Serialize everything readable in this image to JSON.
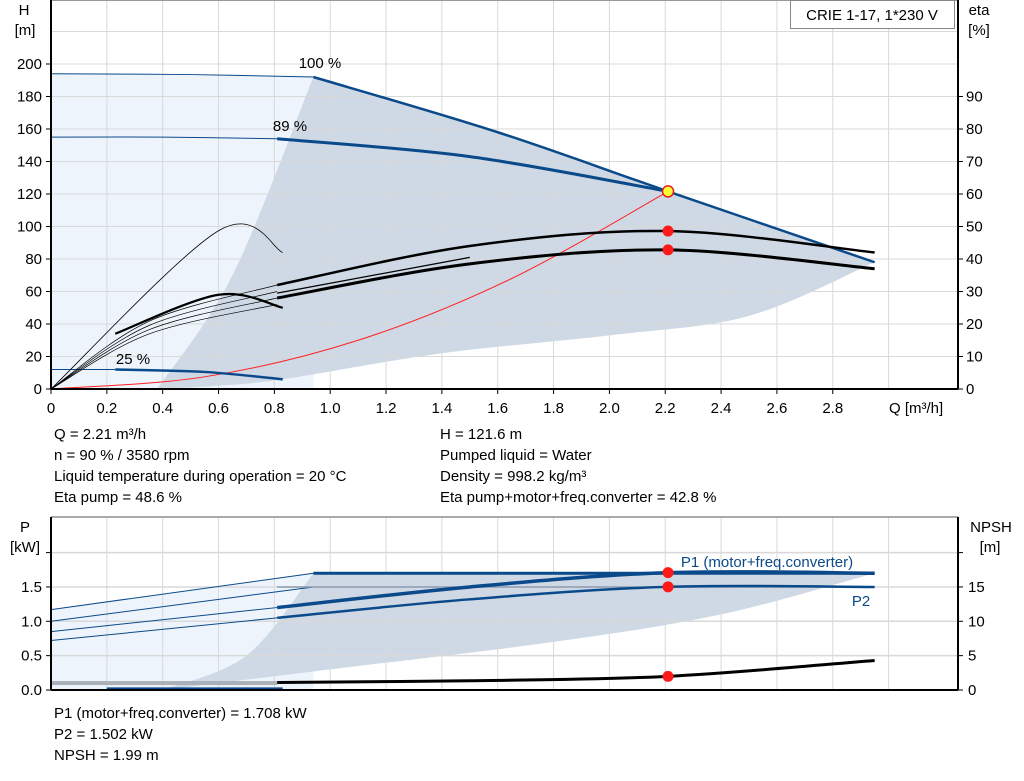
{
  "chart_data": [
    {
      "type": "line",
      "title": "CRIE 1-17, 1*230 V",
      "xlabel": "Q [m³/h]",
      "ylabel": [
        "H",
        "[m]"
      ],
      "ylabel_right": [
        "eta",
        "[%]"
      ],
      "xlim": [
        0,
        3.25
      ],
      "ylim": [
        0,
        239
      ],
      "ylim_right": [
        0,
        119.5
      ],
      "xticks": [
        "0",
        "0.2",
        "0.4",
        "0.6",
        "0.8",
        "1.0",
        "1.2",
        "1.4",
        "1.6",
        "1.8",
        "2.0",
        "2.2",
        "2.4",
        "2.6",
        "2.8"
      ],
      "yticks": [
        "0",
        "20",
        "40",
        "60",
        "80",
        "100",
        "120",
        "140",
        "160",
        "180",
        "200"
      ],
      "yticks_right": [
        "0",
        "10",
        "20",
        "30",
        "40",
        "50",
        "60",
        "70",
        "80",
        "90"
      ],
      "grid": true,
      "colors": {
        "pump_curve": "#0b4a8a",
        "eta_curve": "#000000",
        "system_curve": "#ff2020",
        "operating_area": "#ced9e5",
        "extended_area": "#edf4fc"
      },
      "speed_labels": [
        "100 %",
        "89 %",
        "25 %"
      ],
      "series": [
        {
          "name": "100 %",
          "axis": "H",
          "x": [
            0,
            0.94,
            1.6,
            2.21,
            2.95
          ],
          "y": [
            194,
            192,
            158,
            121.6,
            78
          ]
        },
        {
          "name": "89 %",
          "axis": "H",
          "x": [
            0,
            0.81,
            1.5,
            2.21
          ],
          "y": [
            155,
            154,
            143,
            121.6
          ]
        },
        {
          "name": "25 %",
          "axis": "H",
          "x": [
            0,
            0.23,
            0.83
          ],
          "y": [
            12,
            12,
            6
          ]
        },
        {
          "axis": "eta",
          "x": [
            0.81,
            1.5,
            2.21,
            2.95
          ],
          "y": [
            32,
            44,
            48.6,
            42
          ]
        },
        {
          "axis": "eta",
          "x": [
            0.81,
            1.5,
            2.21,
            2.95
          ],
          "y": [
            28,
            38.5,
            42.8,
            37
          ]
        },
        {
          "axis": "eta",
          "x": [
            0,
            0.6,
            0.83
          ],
          "y": [
            0,
            48.7,
            42
          ]
        },
        {
          "axis": "eta",
          "x": [
            0.23,
            0.6,
            0.83
          ],
          "y": [
            17,
            29,
            25
          ]
        },
        {
          "axis": "H",
          "x": [
            0,
            0.55,
            1.1,
            1.65,
            2.21
          ],
          "y": [
            0,
            7.5,
            30,
            68,
            121.6
          ]
        }
      ],
      "operating_points": [
        {
          "x": 2.21,
          "y": 121.6,
          "axis": "H",
          "color": "#ffff33"
        },
        {
          "x": 2.21,
          "y": 48.6,
          "axis": "eta",
          "color": "#ff1a1a"
        },
        {
          "x": 2.21,
          "y": 42.8,
          "axis": "eta",
          "color": "#ff1a1a"
        }
      ]
    },
    {
      "type": "line",
      "xlabel": "",
      "ylabel": [
        "P",
        "[kW]"
      ],
      "ylabel_right": [
        "NPSH",
        "[m]"
      ],
      "xlim": [
        0,
        3.25
      ],
      "ylim": [
        0,
        2.52
      ],
      "ylim_right": [
        0,
        25.2
      ],
      "yticks": [
        "0.0",
        "0.5",
        "1.0",
        "1.5"
      ],
      "yticks_right": [
        "0",
        "5",
        "10",
        "15"
      ],
      "grid": true,
      "series": [
        {
          "name": "P1 (motor+freq.converter)",
          "axis": "P",
          "x": [
            0.81,
            1.5,
            2.21,
            2.95
          ],
          "y": [
            1.2,
            1.5,
            1.708,
            1.7
          ]
        },
        {
          "name": "P2",
          "axis": "P",
          "x": [
            0.81,
            1.5,
            2.21,
            2.95
          ],
          "y": [
            1.05,
            1.32,
            1.502,
            1.5
          ]
        },
        {
          "axis": "NPSH",
          "x": [
            0.81,
            1.5,
            2.21,
            2.95
          ],
          "y": [
            1.1,
            1.35,
            1.99,
            4.3
          ]
        }
      ],
      "operating_points": [
        {
          "x": 2.21,
          "y": 1.708,
          "axis": "P"
        },
        {
          "x": 2.21,
          "y": 1.502,
          "axis": "P"
        },
        {
          "x": 2.21,
          "y": 1.99,
          "axis": "NPSH"
        }
      ]
    }
  ],
  "info_top_left": [
    "Q = 2.21 m³/h",
    "n = 90 % / 3580 rpm",
    "Liquid temperature during operation = 20 °C",
    "Eta pump = 48.6 %"
  ],
  "info_top_right": [
    "H = 121.6 m",
    "Pumped liquid = Water",
    "Density = 998.2 kg/m³",
    "Eta pump+motor+freq.converter = 42.8 %"
  ],
  "info_bottom": [
    "P1 (motor+freq.converter) = 1.708 kW",
    "P2 = 1.502 kW",
    "NPSH = 1.99 m"
  ]
}
